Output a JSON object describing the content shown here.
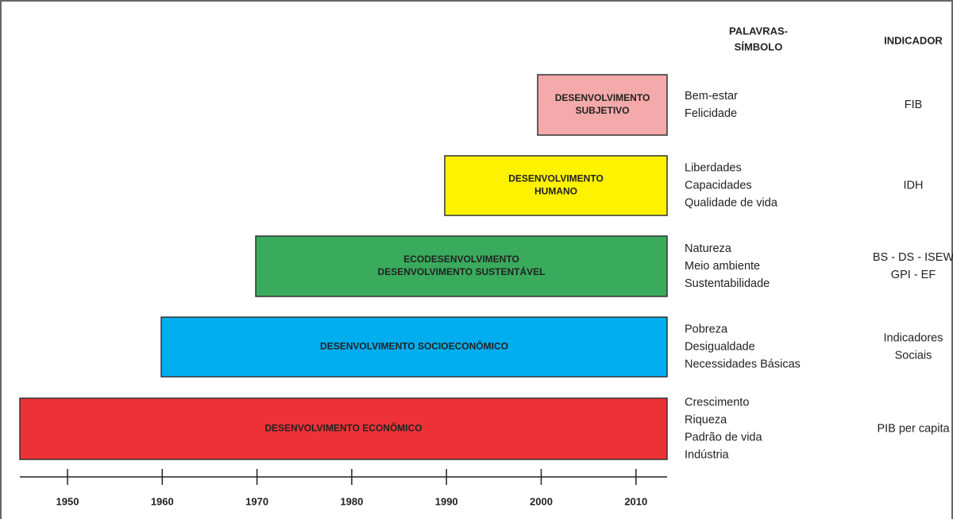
{
  "header": {
    "keywords_title": [
      "PALAVRAS-",
      "SÍMBOLO"
    ],
    "indicator_title": "INDICADOR"
  },
  "rows": [
    {
      "label": [
        "DESENVOLVIMENTO",
        "SUBJETIVO"
      ],
      "keywords": [
        "Bem-estar",
        "Felicidade"
      ],
      "indicator": [
        "FIB"
      ],
      "color": "#f4a9aa"
    },
    {
      "label": [
        "DESENVOLVIMENTO",
        "HUMANO"
      ],
      "keywords": [
        "Liberdades",
        "Capacidades",
        "Qualidade de vida"
      ],
      "indicator": [
        "IDH"
      ],
      "color": "#fff200"
    },
    {
      "label": [
        "ECODESENVOLVIMENTO",
        "DESENVOLVIMENTO SUSTENTÁVEL"
      ],
      "keywords": [
        "Natureza",
        "Meio ambiente",
        "Sustentabilidade"
      ],
      "indicator": [
        "BS - DS - ISEW",
        "GPI - EF"
      ],
      "color": "#3aaa5c"
    },
    {
      "label": [
        "DESENVOLVIMENTO SOCIOECONÔMICO"
      ],
      "keywords": [
        "Pobreza",
        "Desigualdade",
        "Necessidades Básicas"
      ],
      "indicator": [
        "Indicadores",
        "Sociais"
      ],
      "color": "#00aeef"
    },
    {
      "label": [
        "DESENVOLVIMENTO ECONÔMICO"
      ],
      "keywords": [
        "Crescimento",
        "Riqueza",
        "Padrão de vida",
        "Indústria"
      ],
      "indicator": [
        "PIB per capita"
      ],
      "color": "#ec3237"
    }
  ],
  "axis": {
    "ticks": [
      1950,
      1960,
      1970,
      1980,
      1990,
      2000,
      2010
    ]
  }
}
